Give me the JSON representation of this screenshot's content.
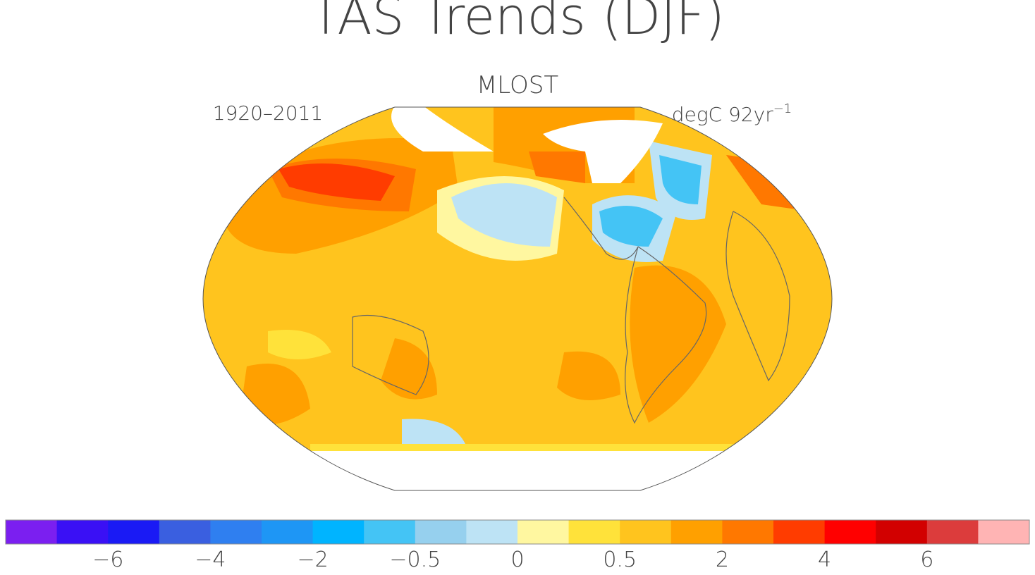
{
  "title": "TAS Trends (DJF)",
  "subtitle": "MLOST",
  "period": "1920–2011",
  "units": {
    "text": "degC 92yr",
    "superscript": "−1"
  },
  "colorbar": {
    "colors": [
      "#7b1ff0",
      "#3a10f5",
      "#1a1af5",
      "#3a5fe0",
      "#2f7ff0",
      "#1e96f5",
      "#00b4ff",
      "#44c4f5",
      "#96d0ee",
      "#bde3f5",
      "#fff7a0",
      "#ffe23a",
      "#ffc41e",
      "#ffa000",
      "#ff7800",
      "#ff3c00",
      "#ff0000",
      "#d20000",
      "#dc3c3c",
      "#ffb4b4"
    ],
    "ticks": [
      {
        "value": -6,
        "label": "−6"
      },
      {
        "value": -4,
        "label": "−4"
      },
      {
        "value": -2,
        "label": "−2"
      },
      {
        "value": -0.5,
        "label": "−0.5"
      },
      0,
      0.5,
      2,
      4,
      6
    ]
  }
}
